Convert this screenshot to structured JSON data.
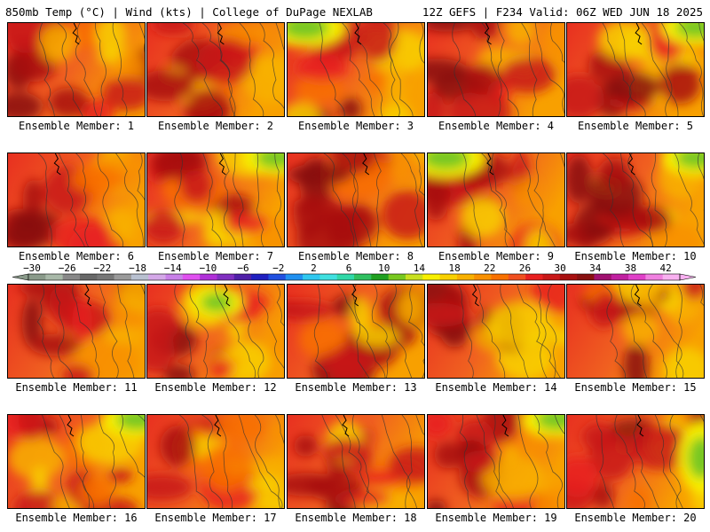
{
  "header": {
    "left": "850mb Temp (°C) | Wind (kts) | College of DuPage NEXLAB",
    "right": "12Z GEFS | F234 Valid: 06Z WED JUN 18 2025"
  },
  "panels": [
    {
      "label": "Ensemble Member: 1"
    },
    {
      "label": "Ensemble Member: 2"
    },
    {
      "label": "Ensemble Member: 3"
    },
    {
      "label": "Ensemble Member: 4"
    },
    {
      "label": "Ensemble Member: 5"
    },
    {
      "label": "Ensemble Member: 6"
    },
    {
      "label": "Ensemble Member: 7"
    },
    {
      "label": "Ensemble Member: 8"
    },
    {
      "label": "Ensemble Member: 9"
    },
    {
      "label": "Ensemble Member: 10"
    },
    {
      "label": "Ensemble Member: 11"
    },
    {
      "label": "Ensemble Member: 12"
    },
    {
      "label": "Ensemble Member: 13"
    },
    {
      "label": "Ensemble Member: 14"
    },
    {
      "label": "Ensemble Member: 15"
    },
    {
      "label": "Ensemble Member: 16"
    },
    {
      "label": "Ensemble Member: 17"
    },
    {
      "label": "Ensemble Member: 18"
    },
    {
      "label": "Ensemble Member: 19"
    },
    {
      "label": "Ensemble Member: 20"
    }
  ],
  "colorbar": {
    "labels": [
      "−30",
      "−26",
      "−22",
      "−18",
      "−14",
      "−10",
      "−6",
      "−2",
      "2",
      "6",
      "10",
      "14",
      "18",
      "22",
      "26",
      "30",
      "34",
      "38",
      "42"
    ],
    "colors": [
      "#8a9a8a",
      "#a8b8a8",
      "#888888",
      "#686868",
      "#777777",
      "#9a9a9a",
      "#b8c0d0",
      "#d4a8e8",
      "#c880e8",
      "#e050f0",
      "#b030d8",
      "#8030c0",
      "#5020a8",
      "#2020c0",
      "#2050e0",
      "#2090f0",
      "#30c8f0",
      "#40e0e0",
      "#30d8a8",
      "#30c060",
      "#20a020",
      "#78c820",
      "#c8e020",
      "#f8f000",
      "#f8d000",
      "#f8b000",
      "#f89000",
      "#f87000",
      "#f05020",
      "#e82020",
      "#c81818",
      "#a81010",
      "#881010",
      "#a01070",
      "#c020a0",
      "#e040c8",
      "#f080e0",
      "#f8b0f0"
    ]
  }
}
